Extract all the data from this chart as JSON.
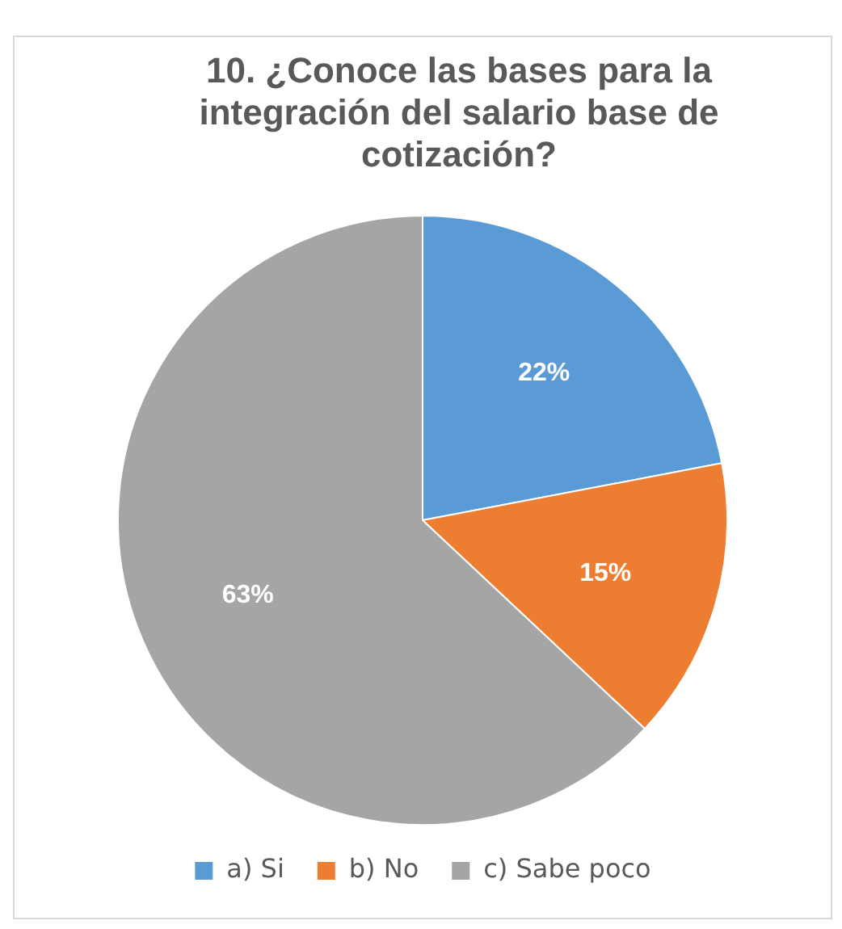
{
  "chart_data": {
    "type": "pie",
    "title": "10. ¿Conoce las bases para la integración del salario base de cotización?",
    "categories": [
      "a) Si",
      "b) No",
      "c) Sabe poco"
    ],
    "values": [
      22,
      15,
      63
    ],
    "colors": [
      "#5b9bd5",
      "#ed7d31",
      "#a5a5a5"
    ],
    "value_labels": [
      "22%",
      "15%",
      "63%"
    ],
    "legend": "bottom"
  }
}
